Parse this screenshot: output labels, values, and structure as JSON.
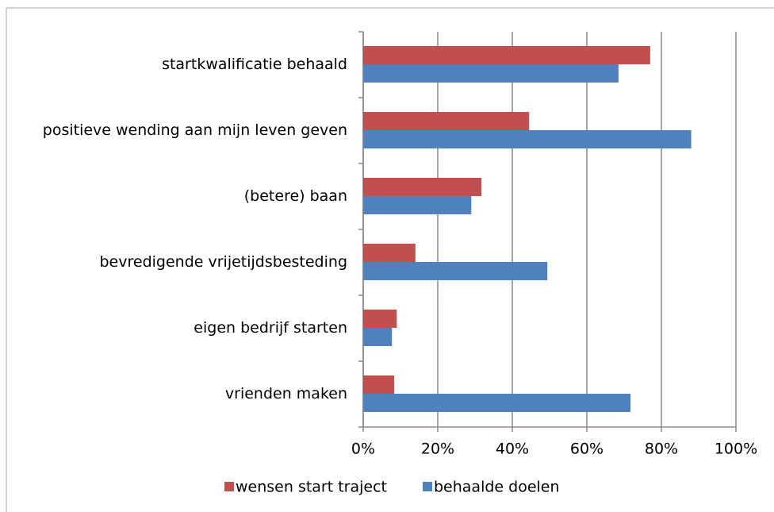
{
  "chart_data": {
    "type": "bar",
    "orientation": "horizontal",
    "categories": [
      "startkwalificatie behaald",
      "positieve wending aan mijn leven geven",
      "(betere) baan",
      "bevredigende vrijetijdsbesteding",
      "eigen bedrijf starten",
      "vrienden maken"
    ],
    "series": [
      {
        "name": "wensen start traject",
        "color": "#c0504d",
        "values": [
          77,
          44.5,
          31.7,
          14,
          9,
          8.3
        ]
      },
      {
        "name": "behaalde doelen",
        "color": "#4f81bd",
        "values": [
          68.5,
          88,
          29,
          49.4,
          7.7,
          71.7
        ]
      }
    ],
    "xlim": [
      0,
      100
    ],
    "xticks": [
      {
        "value": 0,
        "label": "0%"
      },
      {
        "value": 20,
        "label": "20%"
      },
      {
        "value": 40,
        "label": "40%"
      },
      {
        "value": 60,
        "label": "60%"
      },
      {
        "value": 80,
        "label": "80%"
      },
      {
        "value": 100,
        "label": "100%"
      }
    ],
    "grid": true,
    "legend": "bottom"
  }
}
